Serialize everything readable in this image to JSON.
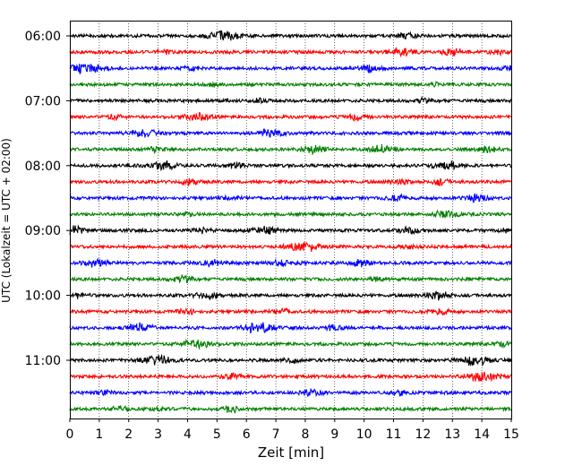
{
  "chart_data": {
    "type": "line",
    "title": "",
    "xlabel": "Zeit  [min]",
    "ylabel": "UTC (Lokalzeit = UTC + 02:00)",
    "xlim": [
      0,
      15
    ],
    "x_ticks": [
      0,
      1,
      2,
      3,
      4,
      5,
      6,
      7,
      8,
      9,
      10,
      11,
      12,
      13,
      14,
      15
    ],
    "y_tick_labels": [
      "06:00",
      "07:00",
      "08:00",
      "09:00",
      "10:00",
      "11:00"
    ],
    "y_tick_rows": [
      0,
      4,
      8,
      12,
      16,
      20
    ],
    "row_interval_min": 15,
    "x_grid": true,
    "y_grid": false,
    "trace_colors": [
      "#000000",
      "#ff0000",
      "#0000ff",
      "#008000"
    ],
    "rows": [
      {
        "start": "06:00",
        "color": "#000000",
        "events": [
          [
            5.2,
            1.0
          ],
          [
            11.5,
            0.6
          ]
        ]
      },
      {
        "start": "06:15",
        "color": "#ff0000",
        "events": [
          [
            3.25,
            0.4
          ],
          [
            11.25,
            0.7
          ],
          [
            13.0,
            0.7
          ],
          [
            14.5,
            0.4
          ]
        ]
      },
      {
        "start": "06:30",
        "color": "#0000ff",
        "events": [
          [
            0.6,
            1.0
          ],
          [
            4.1,
            0.4
          ],
          [
            10.2,
            0.6
          ],
          [
            14.9,
            0.4
          ]
        ]
      },
      {
        "start": "06:45",
        "color": "#008000",
        "events": [
          [
            4.9,
            0.3
          ],
          [
            12.5,
            0.3
          ]
        ]
      },
      {
        "start": "07:00",
        "color": "#000000",
        "events": [
          [
            6.5,
            0.4
          ],
          [
            12.0,
            0.4
          ]
        ]
      },
      {
        "start": "07:15",
        "color": "#ff0000",
        "events": [
          [
            1.5,
            0.5
          ],
          [
            4.35,
            0.8
          ],
          [
            9.75,
            0.6
          ]
        ]
      },
      {
        "start": "07:30",
        "color": "#0000ff",
        "events": [
          [
            2.5,
            0.8
          ],
          [
            6.85,
            0.8
          ]
        ]
      },
      {
        "start": "07:45",
        "color": "#008000",
        "events": [
          [
            2.9,
            0.5
          ],
          [
            8.3,
            0.7
          ],
          [
            10.6,
            0.8
          ],
          [
            14.2,
            0.6
          ]
        ]
      },
      {
        "start": "08:00",
        "color": "#000000",
        "events": [
          [
            3.2,
            0.9
          ],
          [
            5.6,
            0.5
          ],
          [
            12.8,
            0.9
          ]
        ]
      },
      {
        "start": "08:15",
        "color": "#ff0000",
        "events": [
          [
            4.1,
            0.6
          ],
          [
            11.2,
            0.6
          ],
          [
            12.6,
            0.5
          ]
        ]
      },
      {
        "start": "08:30",
        "color": "#0000ff",
        "events": [
          [
            5.5,
            0.4
          ],
          [
            11.1,
            0.6
          ],
          [
            13.8,
            0.7
          ]
        ]
      },
      {
        "start": "08:45",
        "color": "#008000",
        "events": [
          [
            4.0,
            0.4
          ],
          [
            12.8,
            0.8
          ]
        ]
      },
      {
        "start": "09:00",
        "color": "#000000",
        "events": [
          [
            0.1,
            0.8
          ],
          [
            4.5,
            0.5
          ],
          [
            6.6,
            0.8
          ],
          [
            11.5,
            0.5
          ],
          [
            14.9,
            0.4
          ]
        ]
      },
      {
        "start": "09:15",
        "color": "#ff0000",
        "events": [
          [
            7.9,
            1.0
          ],
          [
            11.5,
            0.4
          ]
        ]
      },
      {
        "start": "09:30",
        "color": "#0000ff",
        "events": [
          [
            0.9,
            0.7
          ],
          [
            4.9,
            0.7
          ],
          [
            7.3,
            0.7
          ],
          [
            9.9,
            0.7
          ]
        ]
      },
      {
        "start": "09:45",
        "color": "#008000",
        "events": [
          [
            3.8,
            0.6
          ],
          [
            10.4,
            0.4
          ]
        ]
      },
      {
        "start": "10:00",
        "color": "#000000",
        "events": [
          [
            0.3,
            0.5
          ],
          [
            4.7,
            0.7
          ],
          [
            12.5,
            0.8
          ]
        ]
      },
      {
        "start": "10:15",
        "color": "#ff0000",
        "events": [
          [
            4.0,
            0.5
          ],
          [
            7.2,
            0.5
          ],
          [
            12.6,
            0.5
          ]
        ]
      },
      {
        "start": "10:30",
        "color": "#0000ff",
        "events": [
          [
            2.4,
            0.8
          ],
          [
            6.4,
            1.0
          ],
          [
            8.9,
            0.5
          ]
        ]
      },
      {
        "start": "10:45",
        "color": "#008000",
        "events": [
          [
            4.1,
            0.7
          ],
          [
            4.6,
            0.6
          ],
          [
            14.7,
            0.5
          ]
        ]
      },
      {
        "start": "11:00",
        "color": "#000000",
        "events": [
          [
            3.0,
            1.0
          ],
          [
            7.5,
            0.5
          ],
          [
            13.8,
            1.0
          ]
        ]
      },
      {
        "start": "11:15",
        "color": "#ff0000",
        "events": [
          [
            5.5,
            0.6
          ],
          [
            14.0,
            1.0
          ]
        ]
      },
      {
        "start": "11:30",
        "color": "#0000ff",
        "events": [
          [
            1.2,
            0.4
          ],
          [
            8.2,
            0.6
          ],
          [
            11.2,
            0.5
          ]
        ]
      },
      {
        "start": "11:45",
        "color": "#008000",
        "events": [
          [
            1.7,
            0.5
          ],
          [
            3.0,
            0.4
          ],
          [
            5.5,
            0.6
          ]
        ]
      }
    ]
  }
}
